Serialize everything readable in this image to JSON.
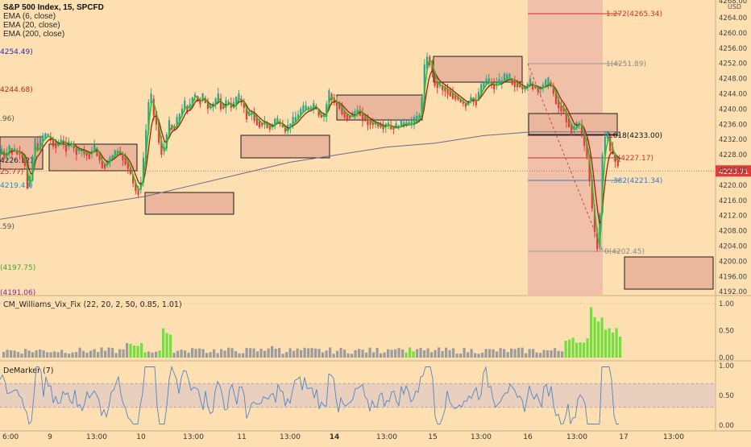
{
  "header": {
    "symbol": "S&P 500 Index, 15, SPCFD",
    "indicators": [
      "EMA (6, close)",
      "EMA (20, close)",
      "EMA (200, close)"
    ]
  },
  "axis": {
    "currency": "USD",
    "main_ticks": [
      "4264.00",
      "4260.00",
      "4256.00",
      "4252.00",
      "4248.00",
      "4244.00",
      "4240.00",
      "4236.00",
      "4232.00",
      "4228.00",
      "4224.00",
      "4220.00",
      "4216.00",
      "4212.00",
      "4208.00",
      "4204.00",
      "4200.00",
      "4196.00",
      "4192.00"
    ],
    "top_partial": "4268.00",
    "current_price": "4223.71",
    "vix_ticks": [
      "1.00",
      "0.50",
      "0.00"
    ],
    "dem_ticks": [
      "1.00",
      "0.50",
      "0.00"
    ],
    "time_labels": [
      "6:00",
      "9",
      "13:00",
      "10",
      "13:00",
      "11",
      "13:00",
      "14",
      "13:00",
      "15",
      "13:00",
      "16",
      "13:00",
      "17",
      "13:00"
    ],
    "bold_time_index": 7
  },
  "left_labels": [
    {
      "text": "4254.49)",
      "color": "#2b2bb8"
    },
    {
      "text": "4244.68)",
      "color": "#c0281e"
    },
    {
      "text": ".96)",
      "color": "#555555"
    },
    {
      "text": "4226.12)",
      "color": "#222222"
    },
    {
      "text": "25.77)",
      "color": "#c0281e"
    },
    {
      "text": "4219.43)",
      "color": "#2a8ad0"
    },
    {
      "text": ".59)",
      "color": "#555555"
    },
    {
      "text": "(4197.75)",
      "color": "#3aa83a"
    },
    {
      "text": "(4191.06)",
      "color": "#8a2a8a"
    }
  ],
  "fib_labels": {
    "ext": "1.272(4265.34)",
    "one": "1(4251.89)",
    "six": "0.618(4233.00)",
    "five": "5(4227.17)",
    "three": ".382(4221.34)",
    "zero": "0(4202.45)"
  },
  "panes": {
    "vix_title": "CM_Williams_Vix_Fix (22, 20, 2, 50, 0.85, 1.01)",
    "dem_title": "DeMarker (7)"
  },
  "colors": {
    "background": "#fddfb1",
    "up_candle": "#2fa38a",
    "down_candle": "#e63a3a",
    "ema6": "#29c329",
    "ema20": "#a02010",
    "ema200": "#6a6a90",
    "current_price_tag": "#e63a3a",
    "vix_high": "#6ee23a",
    "vix_normal": "#9c9c9c"
  },
  "chart_data": [
    {
      "type": "candlestick",
      "title": "S&P 500 Index, 15, SPCFD",
      "ylim": [
        4190,
        4270
      ],
      "x": [
        "6:00",
        "9",
        "13:00",
        "10",
        "13:00",
        "11",
        "13:00",
        "14",
        "13:00",
        "15",
        "13:00",
        "16",
        "13:00",
        "17",
        "13:00"
      ],
      "series": [
        {
          "name": "EMA (6, close)",
          "approx_points": [
            [
              4227,
              1
            ],
            [
              4228,
              5
            ],
            [
              4226,
              9
            ],
            [
              4222,
              15
            ],
            [
              4230,
              19
            ],
            [
              4237,
              24
            ],
            [
              4241,
              30
            ],
            [
              4235,
              35
            ],
            [
              4240,
              41
            ],
            [
              4246,
              47
            ],
            [
              4244,
              52
            ],
            [
              4242,
              57
            ],
            [
              4240,
              60
            ],
            [
              4248,
              66
            ],
            [
              4247,
              74
            ],
            [
              4244,
              80
            ],
            [
              4237,
              86
            ],
            [
              4215,
              92
            ],
            [
              4230,
              96
            ]
          ]
        },
        {
          "name": "EMA (20, close)",
          "approx_points": [
            [
              4228,
              1
            ],
            [
              4229,
              9
            ],
            [
              4227,
              15
            ],
            [
              4231,
              20
            ],
            [
              4236,
              25
            ],
            [
              4239,
              30
            ],
            [
              4237,
              37
            ],
            [
              4240,
              43
            ],
            [
              4243,
              49
            ],
            [
              4241,
              55
            ],
            [
              4240,
              58
            ],
            [
              4246,
              63
            ],
            [
              4245,
              72
            ],
            [
              4245,
              79
            ],
            [
              4241,
              86
            ],
            [
              4232,
              91
            ],
            [
              4228,
              96
            ]
          ]
        },
        {
          "name": "EMA (200, close)",
          "approx_points": [
            [
              4211,
              0
            ],
            [
              4216,
              22
            ],
            [
              4222,
              40
            ],
            [
              4228,
              58
            ],
            [
              4233,
              80
            ],
            [
              4234,
              96
            ]
          ]
        }
      ],
      "current_price": 4223.71,
      "fibonacci": [
        {
          "level": "1.272",
          "value": 4265.34
        },
        {
          "level": "1",
          "value": 4251.89
        },
        {
          "level": "0.618",
          "value": 4233.0
        },
        {
          "level": "0.5",
          "value": 4227.17
        },
        {
          "level": "0.382",
          "value": 4221.34
        },
        {
          "level": "0",
          "value": 4202.45
        }
      ]
    },
    {
      "type": "bar",
      "title": "CM_Williams_Vix_Fix (22, 20, 2, 50, 0.85, 1.01)",
      "ylim": [
        0,
        1.0
      ],
      "x": [
        "9",
        "10",
        "11",
        "14",
        "15",
        "16",
        "17"
      ]
    },
    {
      "type": "line",
      "title": "DeMarker (7)",
      "ylim": [
        0,
        1.0
      ],
      "band": [
        0.3,
        0.7
      ],
      "x": [
        "9",
        "10",
        "11",
        "14",
        "15",
        "16",
        "17"
      ]
    }
  ]
}
